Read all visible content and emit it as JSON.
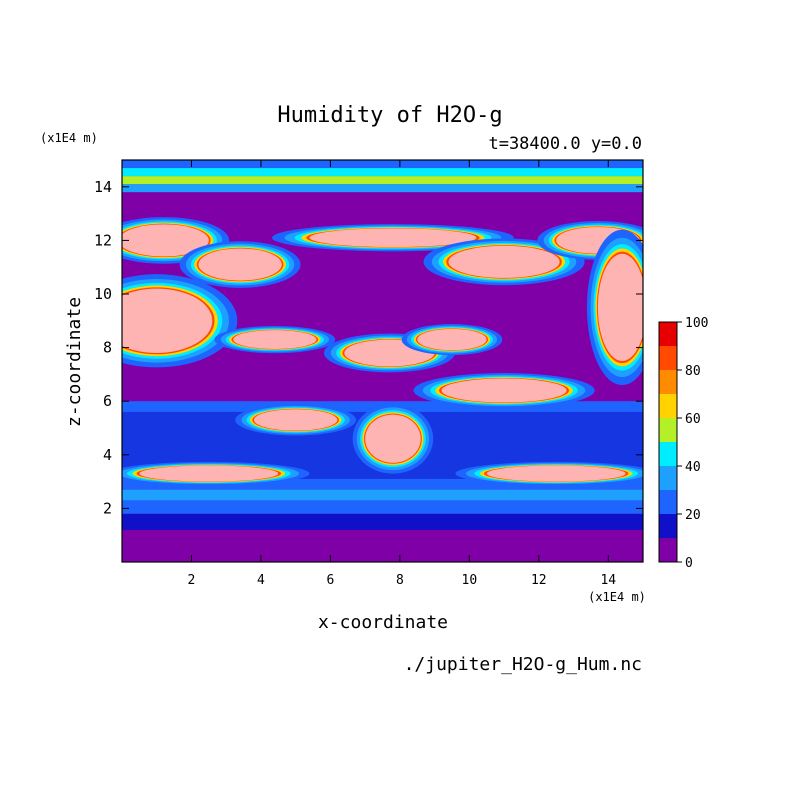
{
  "chart_data": {
    "type": "heatmap",
    "title": "Humidity of H2O-g",
    "subtitle": "t=38400.0 y=0.0",
    "xlabel": "x-coordinate",
    "ylabel": "z-coordinate",
    "x_unit": "(x1E4 m)",
    "y_unit": "(x1E4 m)",
    "source_file": "./jupiter_H2O-g_Hum.nc",
    "xlim": [
      0,
      15
    ],
    "ylim": [
      0,
      15
    ],
    "x_ticks": [
      "2",
      "4",
      "6",
      "8",
      "10",
      "12",
      "14"
    ],
    "y_ticks": [
      "2",
      "4",
      "6",
      "8",
      "10",
      "12",
      "14"
    ],
    "colorbar": {
      "levels": [
        0,
        10,
        20,
        30,
        40,
        50,
        60,
        70,
        80,
        90,
        100
      ],
      "tick_labels": [
        "0",
        "20",
        "40",
        "60",
        "80",
        "100"
      ],
      "colors": [
        "#8000a8",
        "#1010c8",
        "#1e64ff",
        "#1ea0ff",
        "#00ecff",
        "#b4f028",
        "#ffd200",
        "#ff8c00",
        "#ff4a00",
        "#e60000",
        "#ffb4b4"
      ]
    },
    "layers_by_z": [
      {
        "z": [
          0.0,
          1.2
        ],
        "level": 0
      },
      {
        "z": [
          1.2,
          1.8
        ],
        "level": 1
      },
      {
        "z": [
          1.8,
          2.3
        ],
        "level": 2
      },
      {
        "z": [
          2.3,
          2.7
        ],
        "level": 3
      },
      {
        "z": [
          13.3,
          13.8
        ],
        "level": 0
      },
      {
        "z": [
          13.8,
          14.1
        ],
        "level": 3
      },
      {
        "z": [
          14.1,
          14.4
        ],
        "level": 5
      },
      {
        "z": [
          14.4,
          14.7
        ],
        "level": 4
      },
      {
        "z": [
          14.7,
          15.0
        ],
        "level": 2
      }
    ],
    "moist_features": [
      {
        "name": "upper-cloud-left",
        "x": 1.2,
        "z": 12.0,
        "rx": 1.3,
        "rz": 0.6
      },
      {
        "name": "upper-cloud-midleft",
        "x": 3.4,
        "z": 11.1,
        "rx": 1.2,
        "rz": 0.6
      },
      {
        "name": "upper-cloud-top",
        "x": 7.8,
        "z": 12.1,
        "rx": 2.4,
        "rz": 0.35
      },
      {
        "name": "upper-cloud-right",
        "x": 11.0,
        "z": 11.2,
        "rx": 1.6,
        "rz": 0.6
      },
      {
        "name": "upper-cloud-farright",
        "x": 13.7,
        "z": 12.0,
        "rx": 1.2,
        "rz": 0.5
      },
      {
        "name": "left-lobe",
        "x": 1.0,
        "z": 9.0,
        "rx": 1.6,
        "rz": 1.2
      },
      {
        "name": "right-column",
        "x": 14.4,
        "z": 9.5,
        "rx": 0.7,
        "rz": 2.0
      },
      {
        "name": "mid-cloud-a",
        "x": 4.4,
        "z": 8.3,
        "rx": 1.2,
        "rz": 0.35
      },
      {
        "name": "mid-cloud-b",
        "x": 7.7,
        "z": 7.8,
        "rx": 1.3,
        "rz": 0.5
      },
      {
        "name": "mid-cloud-c",
        "x": 9.5,
        "z": 8.3,
        "rx": 1.0,
        "rz": 0.4
      },
      {
        "name": "mid-cloud-d",
        "x": 11.0,
        "z": 6.4,
        "rx": 1.8,
        "rz": 0.45
      },
      {
        "name": "low-cloud-a",
        "x": 5.0,
        "z": 5.3,
        "rx": 1.2,
        "rz": 0.4
      },
      {
        "name": "plume",
        "x": 7.8,
        "z": 4.6,
        "rx": 0.8,
        "rz": 0.9
      },
      {
        "name": "low-band-left",
        "x": 2.5,
        "z": 3.3,
        "rx": 2.0,
        "rz": 0.3
      },
      {
        "name": "low-band-right",
        "x": 12.5,
        "z": 3.3,
        "rx": 2.0,
        "rz": 0.3
      }
    ]
  }
}
